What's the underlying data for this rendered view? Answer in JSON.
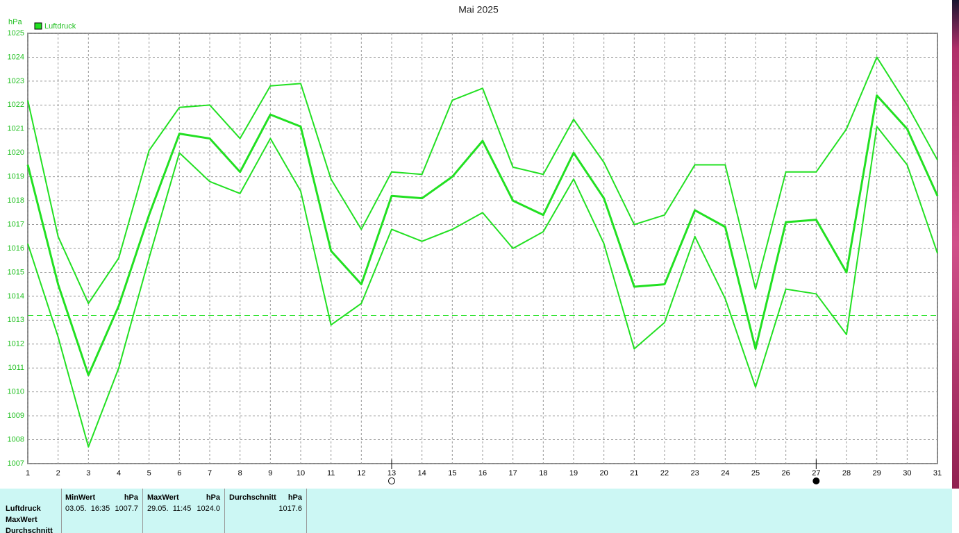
{
  "chart_data": {
    "type": "line",
    "title": "Mai 2025",
    "y_unit": "hPa",
    "x": [
      1,
      2,
      3,
      4,
      5,
      6,
      7,
      8,
      9,
      10,
      11,
      12,
      13,
      14,
      15,
      16,
      17,
      18,
      19,
      20,
      21,
      22,
      23,
      24,
      25,
      26,
      27,
      28,
      29,
      30,
      31
    ],
    "series": [
      {
        "name": "Luftdruck",
        "color": "#22e022",
        "values": [
          1019.5,
          1014.5,
          1010.7,
          1013.6,
          1017.4,
          1020.8,
          1020.6,
          1019.2,
          1021.6,
          1021.1,
          1015.9,
          1014.5,
          1018.2,
          1018.1,
          1019.0,
          1020.5,
          1018.0,
          1017.4,
          1020.0,
          1018.1,
          1014.4,
          1014.5,
          1017.6,
          1016.9,
          1011.8,
          1017.1,
          1017.2,
          1015.0,
          1022.4,
          1021.0,
          1018.2
        ],
        "max": [
          1022.2,
          1016.5,
          1013.7,
          1015.6,
          1020.1,
          1021.9,
          1022.0,
          1020.6,
          1022.8,
          1022.9,
          1018.9,
          1016.8,
          1019.2,
          1019.1,
          1022.2,
          1022.7,
          1019.4,
          1019.1,
          1021.4,
          1019.6,
          1017.0,
          1017.4,
          1019.5,
          1019.5,
          1014.3,
          1019.2,
          1019.2,
          1021.0,
          1024.0,
          1022.0,
          1019.7
        ],
        "min": [
          1016.2,
          1012.3,
          1007.7,
          1011.0,
          1015.6,
          1020.0,
          1018.8,
          1018.3,
          1020.6,
          1018.4,
          1012.8,
          1013.7,
          1016.8,
          1016.3,
          1016.8,
          1017.5,
          1016.0,
          1016.7,
          1018.9,
          1016.2,
          1011.8,
          1012.9,
          1016.5,
          1013.9,
          1010.2,
          1014.3,
          1014.1,
          1012.4,
          1021.1,
          1019.5,
          1015.8
        ]
      }
    ],
    "reference_line": 1013.2,
    "xlim": [
      1,
      31
    ],
    "xticks": [
      1,
      2,
      3,
      4,
      5,
      6,
      7,
      8,
      9,
      10,
      11,
      12,
      13,
      14,
      15,
      16,
      17,
      18,
      19,
      20,
      21,
      22,
      23,
      24,
      25,
      26,
      27,
      28,
      29,
      30,
      31
    ],
    "ylim": [
      1007,
      1025
    ],
    "yticks": [
      1007,
      1008,
      1009,
      1010,
      1011,
      1012,
      1013,
      1014,
      1015,
      1016,
      1017,
      1018,
      1019,
      1020,
      1021,
      1022,
      1023,
      1024,
      1025
    ],
    "grid": true,
    "markers": [
      {
        "x": 13,
        "fill": "none"
      },
      {
        "x": 27,
        "fill": "#000"
      }
    ]
  },
  "table": {
    "row_labels": [
      "Luftdruck",
      "MaxWert",
      "Durchschnitt"
    ],
    "columns": [
      {
        "header": "MinWert",
        "unit": "hPa",
        "time": "03.05.  16:35",
        "value": "1007.7"
      },
      {
        "header": "MaxWert",
        "unit": "hPa",
        "time": "29.05.  11:45",
        "value": "1024.0"
      },
      {
        "header": "Durchschnitt",
        "unit": "hPa",
        "value": "1017.6"
      }
    ]
  }
}
